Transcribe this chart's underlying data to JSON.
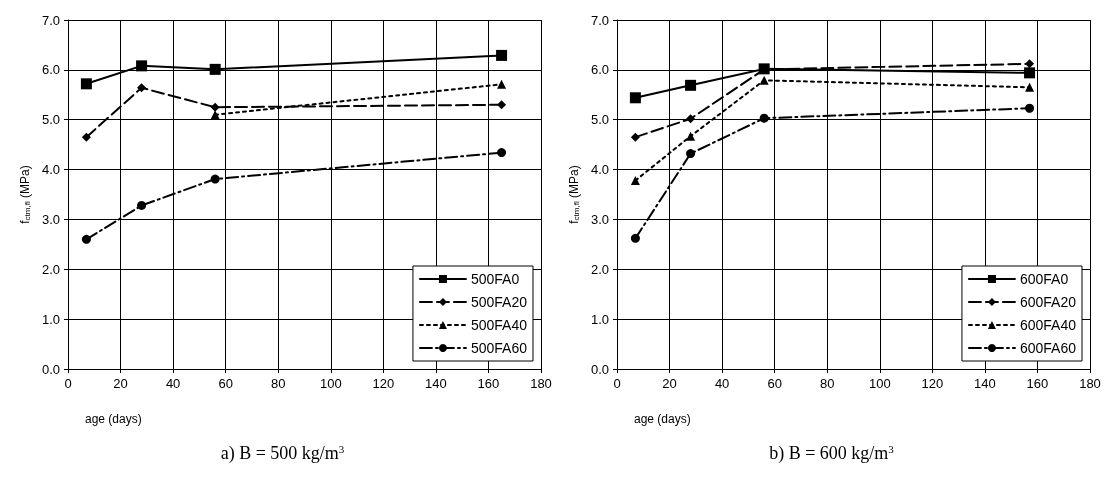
{
  "chart_data": [
    {
      "type": "line",
      "title": "a) B = 500 kg/m$^{3}$",
      "xlabel": "age (days)",
      "ylabel": "f$_{ctm,fl}$ (MPa)",
      "x": [
        7,
        28,
        56,
        165
      ],
      "xlim": [
        0,
        180
      ],
      "xticks": [
        0,
        20,
        40,
        60,
        80,
        100,
        120,
        140,
        160,
        180
      ],
      "ylim": [
        0,
        7
      ],
      "yticks": [
        {
          "value": 0,
          "label": "0.0"
        },
        {
          "value": 1,
          "label": "1.0"
        },
        {
          "value": 2,
          "label": "2.0"
        },
        {
          "value": 3,
          "label": "3.0"
        },
        {
          "value": 4,
          "label": "4.0"
        },
        {
          "value": 5,
          "label": "5.0"
        },
        {
          "value": 6,
          "label": "6.0"
        },
        {
          "value": 7,
          "label": "7.0"
        }
      ],
      "grid": true,
      "legend": "bottom right",
      "series": [
        {
          "name": "500FA0",
          "color": "#000000",
          "marker": "square",
          "line_style": "solid",
          "values": [
            5.72,
            6.08,
            6.01,
            6.29
          ]
        },
        {
          "name": "500FA20",
          "color": "#000000",
          "marker": "diamond",
          "line_style": "dashed",
          "values": [
            4.65,
            5.64,
            5.25,
            5.3
          ]
        },
        {
          "name": "500FA40",
          "color": "#000000",
          "marker": "triangle",
          "line_style": "dotted",
          "x": [
            56,
            165
          ],
          "values": [
            5.1,
            5.71
          ]
        },
        {
          "name": "500FA60",
          "color": "#000000",
          "marker": "circle",
          "line_style": "dashdot",
          "values": [
            2.6,
            3.28,
            3.81,
            4.34
          ]
        }
      ]
    },
    {
      "type": "line",
      "title": "b) B = 600 kg/m$^{3}$",
      "xlabel": "age (days)",
      "ylabel": "f$_{ctm,fl}$ (MPa)",
      "x": [
        7,
        28,
        56,
        157
      ],
      "xlim": [
        0,
        180
      ],
      "xticks": [
        0,
        20,
        40,
        60,
        80,
        100,
        120,
        140,
        160,
        180
      ],
      "ylim": [
        0,
        7
      ],
      "yticks": [
        {
          "value": 0,
          "label": "0.0"
        },
        {
          "value": 1,
          "label": "1.0"
        },
        {
          "value": 2,
          "label": "2.0"
        },
        {
          "value": 3,
          "label": "3.0"
        },
        {
          "value": 4,
          "label": "4.0"
        },
        {
          "value": 5,
          "label": "5.0"
        },
        {
          "value": 6,
          "label": "6.0"
        },
        {
          "value": 7,
          "label": "7.0"
        }
      ],
      "grid": true,
      "legend": "bottom right",
      "series": [
        {
          "name": "600FA0",
          "color": "#000000",
          "marker": "square",
          "line_style": "solid",
          "values": [
            5.44,
            5.69,
            6.02,
            5.94
          ]
        },
        {
          "name": "600FA20",
          "color": "#000000",
          "marker": "diamond",
          "line_style": "dashed",
          "values": [
            4.65,
            5.02,
            6.01,
            6.12
          ]
        },
        {
          "name": "600FA40",
          "color": "#000000",
          "marker": "triangle",
          "line_style": "dotted",
          "values": [
            3.78,
            4.67,
            5.79,
            5.65
          ]
        },
        {
          "name": "600FA60",
          "color": "#000000",
          "marker": "circle",
          "line_style": "dashdot",
          "values": [
            2.62,
            4.32,
            5.03,
            5.23
          ]
        }
      ]
    }
  ]
}
